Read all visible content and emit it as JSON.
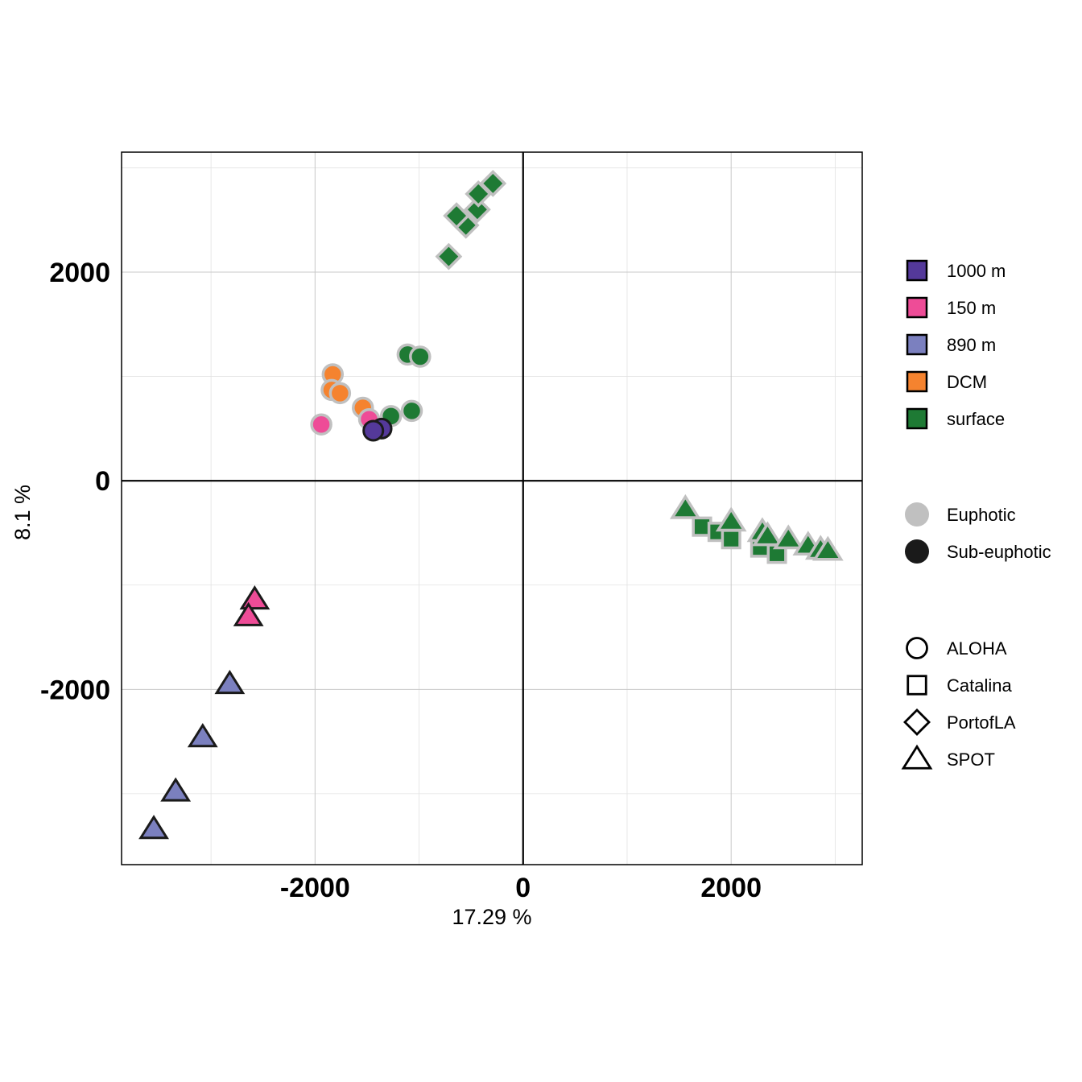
{
  "chart_data": {
    "type": "scatter",
    "xlabel": "17.29 %",
    "ylabel": "8.1 %",
    "xlim": [
      -3860,
      3260
    ],
    "ylim": [
      -3680,
      3150
    ],
    "x_ticks": [
      -2000,
      0,
      2000
    ],
    "y_ticks": [
      -2000,
      0,
      2000
    ],
    "x_minor_ticks": [
      -3000,
      -1000,
      1000,
      3000
    ],
    "y_minor_ticks": [
      -3000,
      -1000,
      1000,
      3000
    ],
    "grid": true,
    "reference_lines": [
      0,
      0
    ],
    "legend_placement": "right",
    "depth_colors": {
      "1000 m": "#54399a",
      "150 m": "#ee4c97",
      "890 m": "#7b80bf",
      "DCM": "#f5832f",
      "surface": "#1e7a34"
    },
    "zone_outline_colors": {
      "Euphotic": "#c0c0c0",
      "Sub-euphotic": "#1a1a1a"
    },
    "legend": {
      "depth": [
        "1000 m",
        "150 m",
        "890 m",
        "DCM",
        "surface"
      ],
      "zone": [
        "Euphotic",
        "Sub-euphotic"
      ],
      "site": [
        "ALOHA",
        "Catalina",
        "PortofLA",
        "SPOT"
      ],
      "site_shapes": [
        "circle",
        "square",
        "diamond",
        "triangle"
      ]
    },
    "points": [
      {
        "x": -715,
        "y": 2150,
        "site": "PortofLA",
        "depth": "surface",
        "zone": "Euphotic"
      },
      {
        "x": -550,
        "y": 2450,
        "site": "PortofLA",
        "depth": "surface",
        "zone": "Euphotic"
      },
      {
        "x": -640,
        "y": 2540,
        "site": "PortofLA",
        "depth": "surface",
        "zone": "Euphotic"
      },
      {
        "x": -440,
        "y": 2600,
        "site": "PortofLA",
        "depth": "surface",
        "zone": "Euphotic"
      },
      {
        "x": -430,
        "y": 2750,
        "site": "PortofLA",
        "depth": "surface",
        "zone": "Euphotic"
      },
      {
        "x": -290,
        "y": 2850,
        "site": "PortofLA",
        "depth": "surface",
        "zone": "Euphotic"
      },
      {
        "x": -1110,
        "y": 1210,
        "site": "ALOHA",
        "depth": "surface",
        "zone": "Euphotic"
      },
      {
        "x": -990,
        "y": 1190,
        "site": "ALOHA",
        "depth": "surface",
        "zone": "Euphotic"
      },
      {
        "x": -1070,
        "y": 670,
        "site": "ALOHA",
        "depth": "surface",
        "zone": "Euphotic"
      },
      {
        "x": -1270,
        "y": 620,
        "site": "ALOHA",
        "depth": "surface",
        "zone": "Euphotic"
      },
      {
        "x": -1830,
        "y": 1020,
        "site": "ALOHA",
        "depth": "DCM",
        "zone": "Euphotic"
      },
      {
        "x": -1840,
        "y": 870,
        "site": "ALOHA",
        "depth": "DCM",
        "zone": "Euphotic"
      },
      {
        "x": -1760,
        "y": 840,
        "site": "ALOHA",
        "depth": "DCM",
        "zone": "Euphotic"
      },
      {
        "x": -1540,
        "y": 700,
        "site": "ALOHA",
        "depth": "DCM",
        "zone": "Euphotic"
      },
      {
        "x": -1940,
        "y": 540,
        "site": "ALOHA",
        "depth": "150 m",
        "zone": "Euphotic"
      },
      {
        "x": -1480,
        "y": 590,
        "site": "ALOHA",
        "depth": "150 m",
        "zone": "Euphotic"
      },
      {
        "x": -1360,
        "y": 500,
        "site": "ALOHA",
        "depth": "1000 m",
        "zone": "Sub-euphotic"
      },
      {
        "x": -1440,
        "y": 480,
        "site": "ALOHA",
        "depth": "1000 m",
        "zone": "Sub-euphotic"
      },
      {
        "x": 1720,
        "y": -440,
        "site": "Catalina",
        "depth": "surface",
        "zone": "Euphotic"
      },
      {
        "x": 1870,
        "y": -490,
        "site": "Catalina",
        "depth": "surface",
        "zone": "Euphotic"
      },
      {
        "x": 2000,
        "y": -560,
        "site": "Catalina",
        "depth": "surface",
        "zone": "Euphotic"
      },
      {
        "x": 2280,
        "y": -640,
        "site": "Catalina",
        "depth": "surface",
        "zone": "Euphotic"
      },
      {
        "x": 2440,
        "y": -700,
        "site": "Catalina",
        "depth": "surface",
        "zone": "Euphotic"
      },
      {
        "x": 1560,
        "y": -270,
        "site": "SPOT",
        "depth": "surface",
        "zone": "Euphotic"
      },
      {
        "x": 2000,
        "y": -390,
        "site": "SPOT",
        "depth": "surface",
        "zone": "Euphotic"
      },
      {
        "x": 2300,
        "y": -490,
        "site": "SPOT",
        "depth": "surface",
        "zone": "Euphotic"
      },
      {
        "x": 2350,
        "y": -530,
        "site": "SPOT",
        "depth": "surface",
        "zone": "Euphotic"
      },
      {
        "x": 2550,
        "y": -560,
        "site": "SPOT",
        "depth": "surface",
        "zone": "Euphotic"
      },
      {
        "x": 2740,
        "y": -620,
        "site": "SPOT",
        "depth": "surface",
        "zone": "Euphotic"
      },
      {
        "x": 2860,
        "y": -660,
        "site": "SPOT",
        "depth": "surface",
        "zone": "Euphotic"
      },
      {
        "x": 2930,
        "y": -670,
        "site": "SPOT",
        "depth": "surface",
        "zone": "Euphotic"
      },
      {
        "x": -2580,
        "y": -1140,
        "site": "SPOT",
        "depth": "150 m",
        "zone": "Sub-euphotic"
      },
      {
        "x": -2640,
        "y": -1300,
        "site": "SPOT",
        "depth": "150 m",
        "zone": "Sub-euphotic"
      },
      {
        "x": -2820,
        "y": -1950,
        "site": "SPOT",
        "depth": "890 m",
        "zone": "Sub-euphotic"
      },
      {
        "x": -3080,
        "y": -2460,
        "site": "SPOT",
        "depth": "890 m",
        "zone": "Sub-euphotic"
      },
      {
        "x": -3340,
        "y": -2980,
        "site": "SPOT",
        "depth": "890 m",
        "zone": "Sub-euphotic"
      },
      {
        "x": -3550,
        "y": -3340,
        "site": "SPOT",
        "depth": "890 m",
        "zone": "Sub-euphotic"
      }
    ]
  }
}
